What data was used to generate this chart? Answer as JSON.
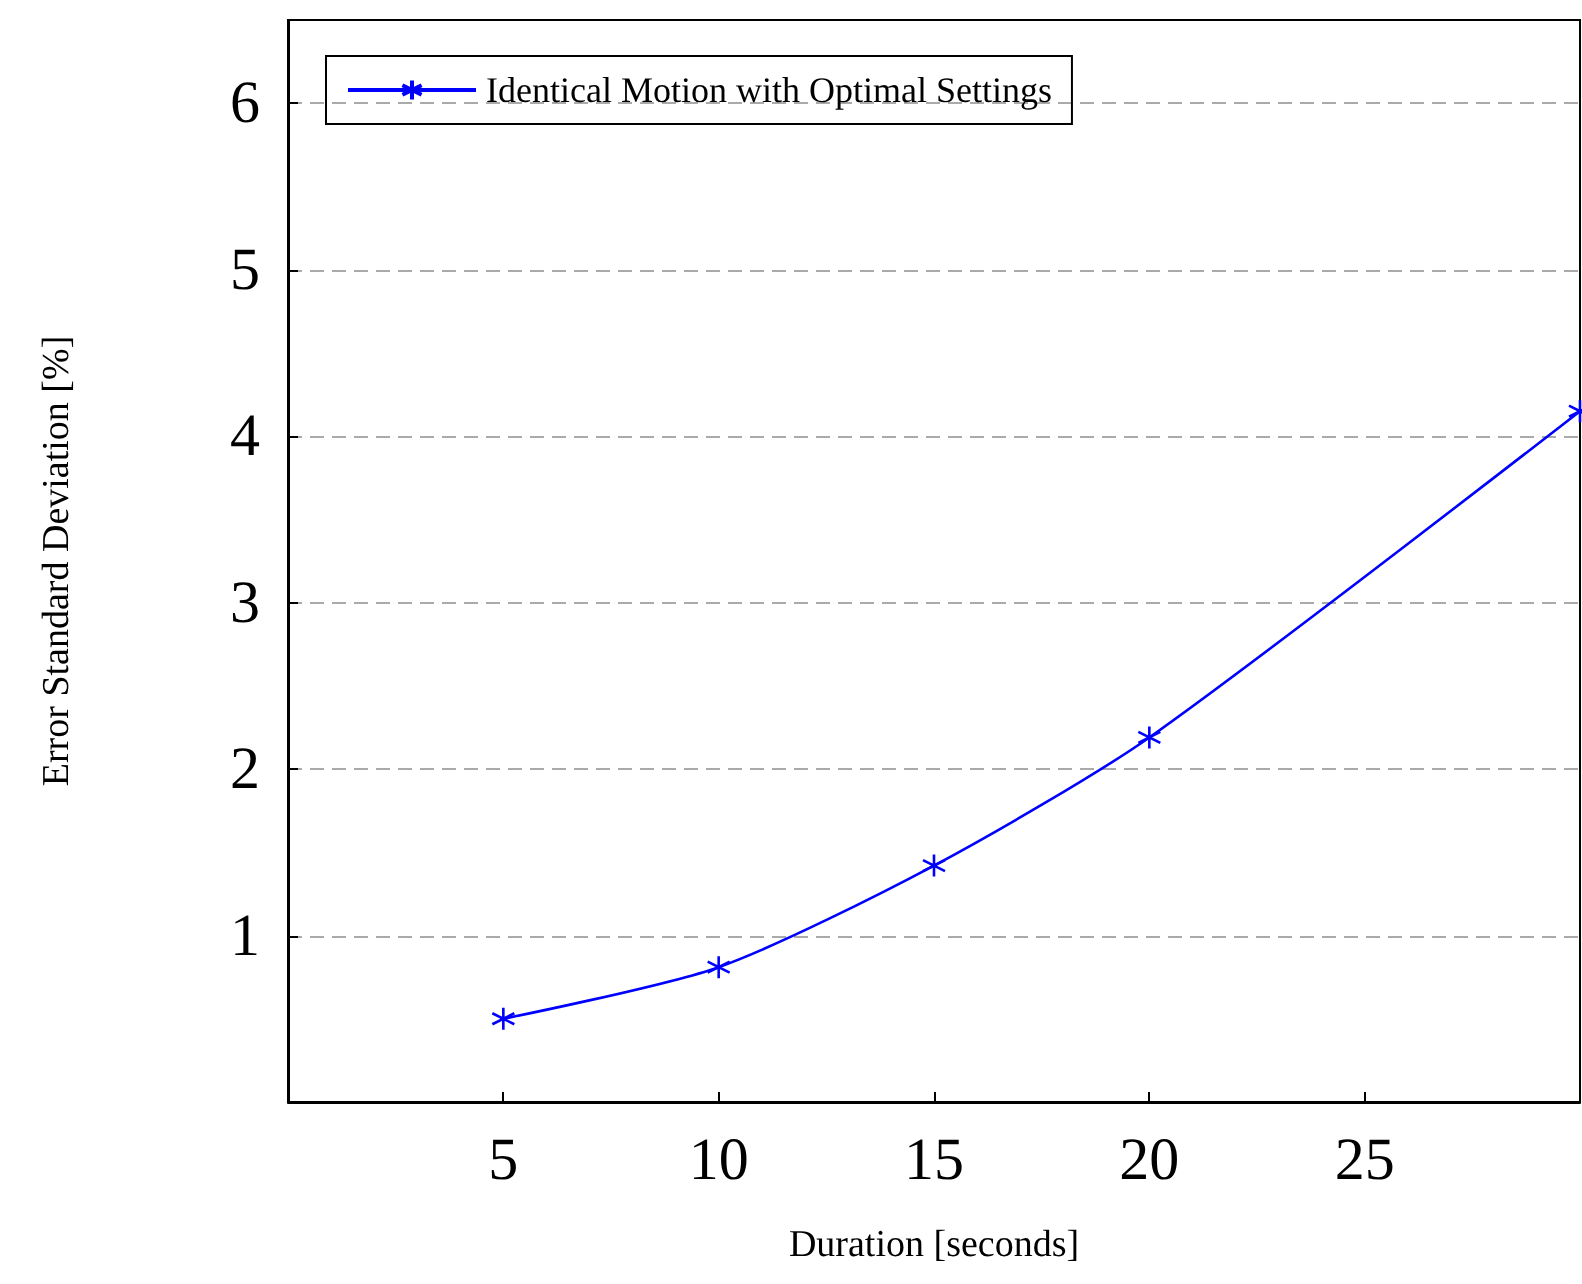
{
  "chart_data": {
    "type": "line",
    "xlabel": "Duration [seconds]",
    "ylabel": "Error Standard Deviation [%]",
    "x": [
      5,
      10,
      15,
      20,
      30
    ],
    "series": [
      {
        "name": "Identical Motion with Optimal Settings",
        "color": "#0000ff",
        "values": [
          0.5,
          0.81,
          1.42,
          2.19,
          4.15
        ]
      }
    ],
    "xlim": [
      0,
      30
    ],
    "xticks": [
      5,
      10,
      15,
      20,
      25
    ],
    "ylim": [
      0,
      6.5
    ],
    "yticks": [
      1,
      2,
      3,
      4,
      5,
      6
    ],
    "grid": "y",
    "legend": "top left",
    "marker": "cross",
    "line_style": "solid"
  }
}
